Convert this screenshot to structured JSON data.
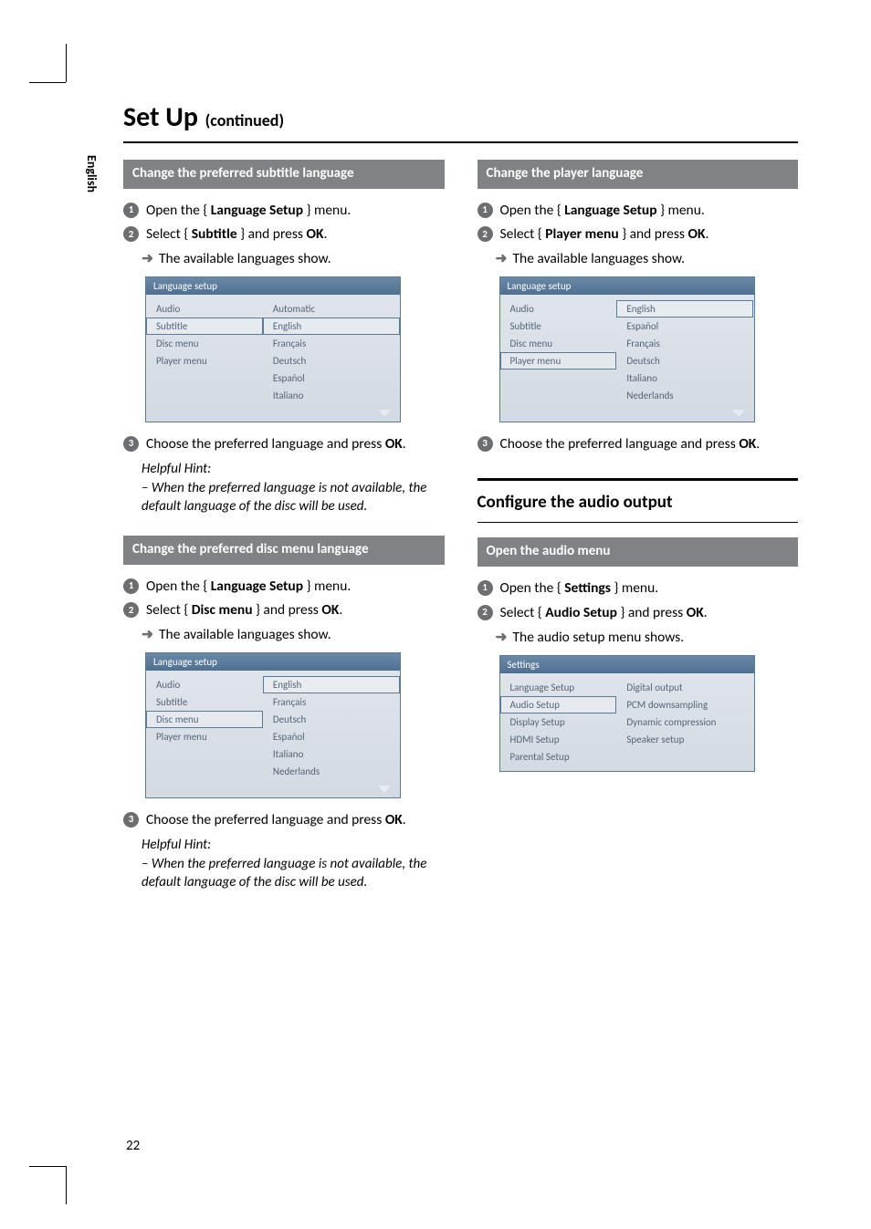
{
  "page_number": "22",
  "title": "Set Up",
  "title_cont": "(continued)",
  "side_lang": "English",
  "subtitle_lang": {
    "bar": "Change the preferred subtitle language",
    "step1_a": "Open the { ",
    "step1_b": "Language Setup",
    "step1_c": " } menu.",
    "step2_a": "Select { ",
    "step2_b": "Subtitle",
    "step2_c": " } and press ",
    "step2_d": "OK",
    "step2_e": ".",
    "sub_a": "The available languages show.",
    "step3_a": "Choose the preferred language and press ",
    "step3_b": "OK",
    "step3_c": ".",
    "hint_head": "Helpful Hint:",
    "hint_body": "–  When the preferred language is not available, the default language of the disc will be used.",
    "menu": {
      "title": "Language setup",
      "left": [
        "Audio",
        "Subtitle",
        "Disc menu",
        "Player menu"
      ],
      "left_selected": 1,
      "right": [
        "Automatic",
        "English",
        "Français",
        "Deutsch",
        "Español",
        "Italiano"
      ],
      "right_selected": 1
    }
  },
  "disc_menu_lang": {
    "bar": "Change the preferred disc menu language",
    "step1_a": "Open the { ",
    "step1_b": "Language Setup",
    "step1_c": " } menu.",
    "step2_a": "Select { ",
    "step2_b": "Disc menu",
    "step2_c": " } and press ",
    "step2_d": "OK",
    "step2_e": ".",
    "sub_a": "The available languages show.",
    "step3_a": "Choose the preferred language and press ",
    "step3_b": "OK",
    "step3_c": ".",
    "hint_head": "Helpful Hint:",
    "hint_body": "–  When the preferred language is not available, the default language of the disc will be used.",
    "menu": {
      "title": "Language setup",
      "left": [
        "Audio",
        "Subtitle",
        "Disc menu",
        "Player menu"
      ],
      "left_selected": 2,
      "right": [
        "English",
        "Français",
        "Deutsch",
        "Español",
        "Italiano",
        "Nederlands"
      ],
      "right_selected": 0
    }
  },
  "player_lang": {
    "bar": "Change the player language",
    "step1_a": "Open the { ",
    "step1_b": "Language Setup",
    "step1_c": " } menu.",
    "step2_a": "Select { ",
    "step2_b": "Player menu",
    "step2_c": " } and press ",
    "step2_d": "OK",
    "step2_e": ".",
    "sub_a": "The available languages show.",
    "step3_a": "Choose the preferred language and press ",
    "step3_b": "OK",
    "step3_c": ".",
    "menu": {
      "title": "Language setup",
      "left": [
        "Audio",
        "Subtitle",
        "Disc menu",
        "Player menu"
      ],
      "left_selected": 3,
      "right": [
        "English",
        "Español",
        "Français",
        "Deutsch",
        "Italiano",
        "Nederlands"
      ],
      "right_selected": 0
    }
  },
  "audio_section": {
    "head": "Configure the audio output",
    "bar": "Open the audio menu",
    "step1_a": "Open the { ",
    "step1_b": "Settings",
    "step1_c": " } menu.",
    "step2_a": "Select { ",
    "step2_b": "Audio Setup",
    "step2_c": " } and press ",
    "step2_d": "OK",
    "step2_e": ".",
    "sub_a": "The audio setup menu shows.",
    "menu": {
      "title": "Settings",
      "left": [
        "Language Setup",
        "Audio Setup",
        "Display Setup",
        "HDMI Setup",
        "Parental Setup"
      ],
      "left_selected": 1,
      "right": [
        "Digital output",
        "PCM downsampling",
        "Dynamic compression",
        "Speaker setup"
      ],
      "right_selected": -1
    }
  },
  "colors": {
    "bar_bg": "#808285",
    "bullet_bg": "#6d6e71",
    "menu_border": "#5b7a99",
    "menu_text": "#54657a",
    "menu_header_top": "#6a89a8",
    "menu_header_bottom": "#507092",
    "menu_bg_top": "#e1e6ec",
    "menu_bg_bottom": "#d3dae2"
  }
}
